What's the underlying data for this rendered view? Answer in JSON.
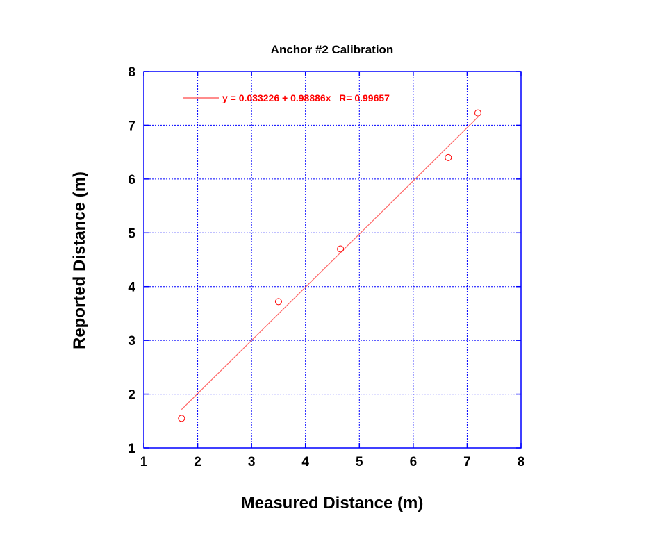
{
  "chart_data": {
    "type": "scatter",
    "title": "Anchor #2 Calibration",
    "xlabel": "Measured Distance (m)",
    "ylabel": "Reported Distance (m)",
    "xlim": [
      1,
      8
    ],
    "ylim": [
      1,
      8
    ],
    "xticks": [
      "1",
      "2",
      "3",
      "4",
      "5",
      "6",
      "7",
      "8"
    ],
    "yticks": [
      "1",
      "2",
      "3",
      "4",
      "5",
      "6",
      "7",
      "8"
    ],
    "grid": true,
    "points": {
      "x": [
        1.7,
        3.5,
        4.65,
        6.65,
        7.2
      ],
      "y": [
        1.55,
        3.72,
        4.7,
        6.4,
        7.23
      ]
    },
    "fit": {
      "intercept": 0.033226,
      "slope": 0.98886,
      "x_range": [
        1.7,
        7.2
      ],
      "label": "y = 0.033226 + 0.98886x   R= 0.99657"
    },
    "legend_position": "top-left",
    "colors": {
      "axes": "#0000ff",
      "grid": "#0000ff",
      "series": "#ff0000",
      "fit_line": "#ff6666"
    }
  }
}
